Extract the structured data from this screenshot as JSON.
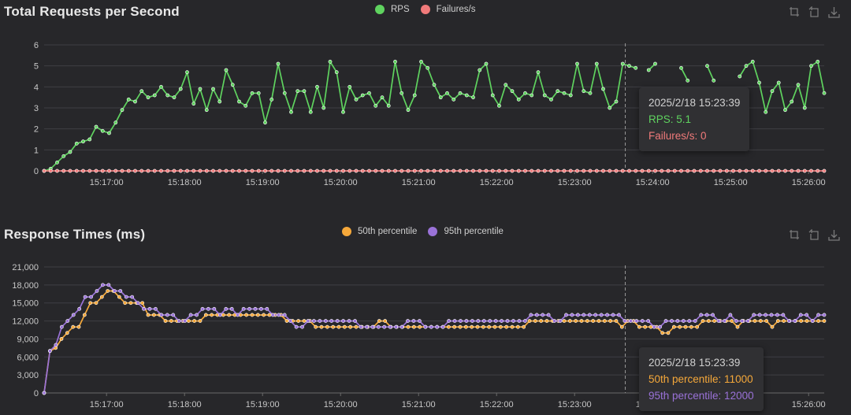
{
  "charts": {
    "rps": {
      "title": "Total Requests per Second",
      "legend": [
        {
          "name": "RPS",
          "color": "#5fd35f"
        },
        {
          "name": "Failures/s",
          "color": "#f07a7a"
        }
      ],
      "tooltip": {
        "time": "2025/2/18 15:23:39",
        "line1": "RPS: 5.1",
        "line2": "Failures/s: 0"
      }
    },
    "resp": {
      "title": "Response Times (ms)",
      "legend": [
        {
          "name": "50th percentile",
          "color": "#f5a83a"
        },
        {
          "name": "95th percentile",
          "color": "#9a72d8"
        }
      ],
      "tooltip": {
        "time": "2025/2/18 15:23:39",
        "line1": "50th percentile: 11000",
        "line2": "95th percentile: 12000"
      }
    }
  },
  "toolbox_icons": [
    "zoom-icon",
    "zoom-reset-icon",
    "download-icon"
  ],
  "chart_data": [
    {
      "type": "line",
      "title": "Total Requests per Second",
      "x_ticks": [
        "15:17:00",
        "15:18:00",
        "15:19:00",
        "15:20:00",
        "15:21:00",
        "15:22:00",
        "15:23:00",
        "15:24:00",
        "15:25:00",
        "15:26:00"
      ],
      "x_range": [
        "15:16:12",
        "15:26:12"
      ],
      "ylim": [
        0,
        6
      ],
      "y_ticks": [
        "0",
        "1",
        "2",
        "3",
        "4",
        "5",
        "6"
      ],
      "grid": true,
      "legend_position": "top-center",
      "hover_time": "15:23:39",
      "series": [
        {
          "name": "RPS",
          "color": "#5fd35f",
          "values": [
            0,
            0.1,
            0.4,
            0.7,
            0.9,
            1.3,
            1.4,
            1.5,
            2.1,
            1.9,
            1.8,
            2.3,
            2.9,
            3.4,
            3.3,
            3.8,
            3.5,
            3.6,
            4.0,
            3.6,
            3.5,
            3.9,
            4.7,
            3.2,
            3.9,
            2.9,
            3.9,
            3.3,
            4.8,
            4.1,
            3.3,
            3.1,
            3.7,
            3.7,
            2.3,
            3.4,
            5.1,
            3.7,
            2.8,
            3.8,
            3.8,
            2.8,
            4.0,
            3.0,
            5.2,
            4.7,
            2.8,
            4.0,
            3.4,
            3.6,
            3.7,
            3.1,
            3.5,
            3.1,
            5.2,
            3.7,
            2.9,
            3.6,
            5.2,
            4.9,
            4.1,
            3.5,
            3.7,
            3.4,
            3.7,
            3.6,
            3.5,
            4.8,
            5.1,
            3.6,
            3.1,
            4.1,
            3.8,
            3.4,
            3.7,
            3.6,
            4.7,
            3.6,
            3.4,
            3.8,
            3.7,
            3.6,
            5.1,
            3.8,
            3.7,
            5.1,
            3.9,
            3.0,
            3.3,
            5.1,
            5.0,
            4.9,
            null,
            4.8,
            5.1,
            null,
            null,
            null,
            4.9,
            4.3,
            null,
            null,
            5.0,
            4.3,
            null,
            null,
            null,
            4.5,
            5.0,
            5.2,
            4.2,
            2.8,
            3.8,
            4.2,
            2.9,
            3.3,
            4.1,
            3.0,
            5.0,
            5.2,
            3.7
          ]
        },
        {
          "name": "Failures/s",
          "color": "#f07a7a",
          "values": [
            0,
            0,
            0,
            0,
            0,
            0,
            0,
            0,
            0,
            0,
            0,
            0,
            0,
            0,
            0,
            0,
            0,
            0,
            0,
            0,
            0,
            0,
            0,
            0,
            0,
            0,
            0,
            0,
            0,
            0,
            0,
            0,
            0,
            0,
            0,
            0,
            0,
            0,
            0,
            0,
            0,
            0,
            0,
            0,
            0,
            0,
            0,
            0,
            0,
            0,
            0,
            0,
            0,
            0,
            0,
            0,
            0,
            0,
            0,
            0,
            0,
            0,
            0,
            0,
            0,
            0,
            0,
            0,
            0,
            0,
            0,
            0,
            0,
            0,
            0,
            0,
            0,
            0,
            0,
            0,
            0,
            0,
            0,
            0,
            0,
            0,
            0,
            0,
            0,
            0,
            0,
            0,
            0,
            0,
            0,
            0,
            0,
            0,
            0,
            0,
            0,
            0,
            0,
            0,
            0,
            0,
            0,
            0,
            0,
            0,
            0,
            0,
            0,
            0,
            0,
            0,
            0,
            0,
            0,
            0,
            0
          ]
        }
      ]
    },
    {
      "type": "line",
      "title": "Response Times (ms)",
      "x_ticks": [
        "15:17:00",
        "15:18:00",
        "15:19:00",
        "15:20:00",
        "15:21:00",
        "15:22:00",
        "15:23:00",
        "15:24:00",
        "15:25:00",
        "15:26:00"
      ],
      "x_range": [
        "15:16:12",
        "15:26:12"
      ],
      "ylim": [
        0,
        21000
      ],
      "y_ticks": [
        "0",
        "3,000",
        "6,000",
        "9,000",
        "12,000",
        "15,000",
        "18,000",
        "21,000"
      ],
      "grid": true,
      "legend_position": "top-center",
      "hover_time": "15:23:39",
      "series": [
        {
          "name": "50th percentile",
          "color": "#f5a83a",
          "values": [
            0,
            7000,
            7500,
            9000,
            10000,
            11000,
            11000,
            13000,
            15000,
            15000,
            16000,
            17000,
            17000,
            16000,
            15000,
            15000,
            15000,
            15000,
            13000,
            13000,
            13000,
            12000,
            12000,
            12000,
            12000,
            12000,
            12000,
            12000,
            13000,
            13000,
            13000,
            13000,
            13000,
            13000,
            13000,
            13000,
            13000,
            13000,
            13000,
            13000,
            13000,
            13000,
            12000,
            12000,
            12000,
            12000,
            12000,
            11000,
            11000,
            11000,
            11000,
            11000,
            11000,
            11000,
            11000,
            11000,
            11000,
            11000,
            12000,
            12000,
            11000,
            11000,
            11000,
            11000,
            11000,
            11000,
            11000,
            11000,
            11000,
            11000,
            11000,
            11000,
            11000,
            11000,
            11000,
            11000,
            11000,
            11000,
            11000,
            11000,
            11000,
            11000,
            11000,
            11000,
            12000,
            12000,
            12000,
            12000,
            12000,
            12000,
            12000,
            12000,
            12000,
            12000,
            12000,
            12000,
            12000,
            12000,
            12000,
            12000,
            11000,
            12000,
            12000,
            11000,
            11000,
            11000,
            11000,
            10000,
            10000,
            11000,
            11000,
            11000,
            11000,
            11000,
            12000,
            12000,
            12000,
            12000,
            12000,
            12000,
            11000,
            12000,
            12000,
            12000,
            12000,
            12000,
            11000,
            12000,
            12000,
            12000,
            12000,
            12000,
            12000,
            12000,
            12000,
            12000
          ]
        },
        {
          "name": "95th percentile",
          "color": "#9a72d8",
          "values": [
            0,
            7000,
            8000,
            11000,
            12000,
            13000,
            14000,
            16000,
            16000,
            17000,
            18000,
            18000,
            17000,
            17000,
            16000,
            16000,
            15000,
            14000,
            14000,
            14000,
            13000,
            13000,
            13000,
            12000,
            12000,
            13000,
            13000,
            14000,
            14000,
            14000,
            13000,
            14000,
            14000,
            13000,
            14000,
            14000,
            14000,
            14000,
            14000,
            13000,
            13000,
            13000,
            12000,
            11000,
            11000,
            12000,
            12000,
            12000,
            12000,
            12000,
            12000,
            12000,
            12000,
            12000,
            11000,
            11000,
            11000,
            11000,
            11000,
            11000,
            11000,
            11000,
            12000,
            12000,
            12000,
            11000,
            11000,
            11000,
            11000,
            12000,
            12000,
            12000,
            12000,
            12000,
            12000,
            12000,
            12000,
            12000,
            12000,
            12000,
            12000,
            12000,
            12000,
            13000,
            13000,
            13000,
            13000,
            12000,
            12000,
            13000,
            13000,
            13000,
            13000,
            13000,
            13000,
            13000,
            13000,
            13000,
            13000,
            12000,
            12000,
            12000,
            12000,
            12000,
            11000,
            11000,
            12000,
            12000,
            12000,
            12000,
            12000,
            12000,
            13000,
            13000,
            13000,
            12000,
            12000,
            13000,
            12000,
            12000,
            12000,
            13000,
            13000,
            13000,
            13000,
            13000,
            13000,
            12000,
            12000,
            13000,
            13000,
            12000,
            13000,
            13000
          ]
        }
      ]
    }
  ]
}
